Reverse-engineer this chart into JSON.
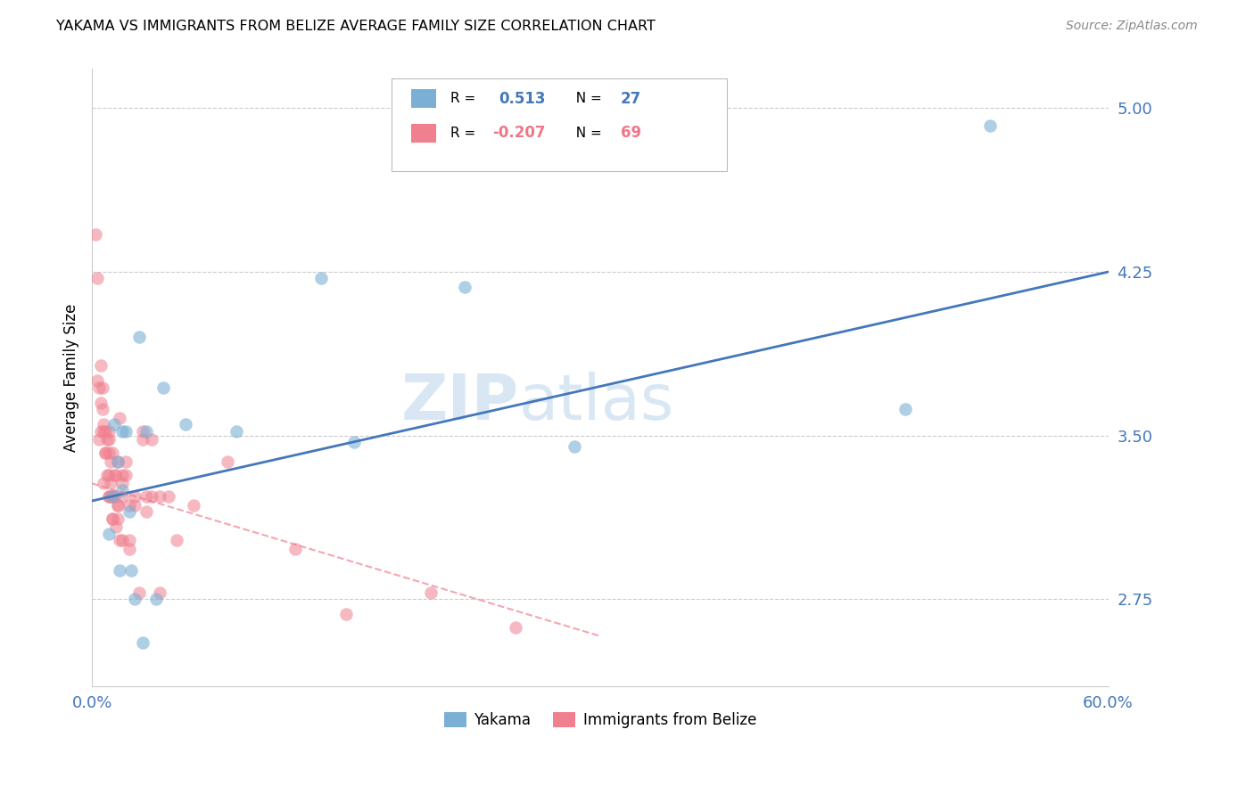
{
  "title": "YAKAMA VS IMMIGRANTS FROM BELIZE AVERAGE FAMILY SIZE CORRELATION CHART",
  "source": "Source: ZipAtlas.com",
  "ylabel": "Average Family Size",
  "yticks": [
    2.75,
    3.5,
    4.25,
    5.0
  ],
  "xmin": 0.0,
  "xmax": 60.0,
  "ymin": 2.35,
  "ymax": 5.18,
  "blue_color": "#7BAFD4",
  "pink_color": "#F08090",
  "blue_line_color": "#4477BB",
  "pink_line_color": "#EE7788",
  "watermark_zip": "ZIP",
  "watermark_atlas": "atlas",
  "blue_line_x0": 0.0,
  "blue_line_y0": 3.2,
  "blue_line_x1": 60.0,
  "blue_line_y1": 4.25,
  "pink_line_x0": 0.0,
  "pink_line_y0": 3.28,
  "pink_line_x1": 30.0,
  "pink_line_y1": 2.58,
  "yakama_x": [
    1.5,
    2.8,
    4.2,
    5.5,
    3.2,
    1.8,
    2.2,
    1.2,
    1.0,
    1.6,
    2.5,
    3.8,
    1.3,
    1.8,
    2.0,
    2.3,
    8.5,
    15.5,
    22.0,
    28.5,
    48.0,
    53.0,
    13.5,
    3.0
  ],
  "yakama_y": [
    3.38,
    3.95,
    3.72,
    3.55,
    3.52,
    3.25,
    3.15,
    3.22,
    3.05,
    2.88,
    2.75,
    2.75,
    3.55,
    3.52,
    3.52,
    2.88,
    3.52,
    3.47,
    4.18,
    3.45,
    3.62,
    4.92,
    4.22,
    2.55
  ],
  "belize_x": [
    0.2,
    0.3,
    0.3,
    0.4,
    0.5,
    0.5,
    0.6,
    0.7,
    0.7,
    0.8,
    0.8,
    0.9,
    0.9,
    1.0,
    1.0,
    1.0,
    1.0,
    1.1,
    1.1,
    1.2,
    1.2,
    1.3,
    1.4,
    1.5,
    1.5,
    1.6,
    1.8,
    1.8,
    2.0,
    2.2,
    2.5,
    2.5,
    3.0,
    3.0,
    3.2,
    3.5,
    3.5,
    4.0,
    4.5,
    5.0,
    6.0,
    0.4,
    0.5,
    0.6,
    0.7,
    0.8,
    1.0,
    1.1,
    1.2,
    1.4,
    1.5,
    1.6,
    1.8,
    2.0,
    2.2,
    2.8,
    3.2,
    4.0,
    8.0,
    1.0,
    1.2,
    1.3,
    1.5,
    1.8,
    2.2,
    12.0,
    15.0,
    20.0,
    25.0
  ],
  "belize_y": [
    4.42,
    4.22,
    3.75,
    3.72,
    3.65,
    3.82,
    3.62,
    3.55,
    3.52,
    3.52,
    3.42,
    3.48,
    3.32,
    3.42,
    3.32,
    3.22,
    3.48,
    3.38,
    3.28,
    3.22,
    3.42,
    3.22,
    3.32,
    3.18,
    3.38,
    3.58,
    3.22,
    3.32,
    3.32,
    3.18,
    3.22,
    3.18,
    3.52,
    3.48,
    3.22,
    3.48,
    3.22,
    3.22,
    3.22,
    3.02,
    3.18,
    3.48,
    3.52,
    3.72,
    3.28,
    3.42,
    3.22,
    3.22,
    3.12,
    3.08,
    3.18,
    3.02,
    3.28,
    3.38,
    3.02,
    2.78,
    3.15,
    2.78,
    3.38,
    3.52,
    3.12,
    3.32,
    3.12,
    3.02,
    2.98,
    2.98,
    2.68,
    2.78,
    2.62
  ]
}
